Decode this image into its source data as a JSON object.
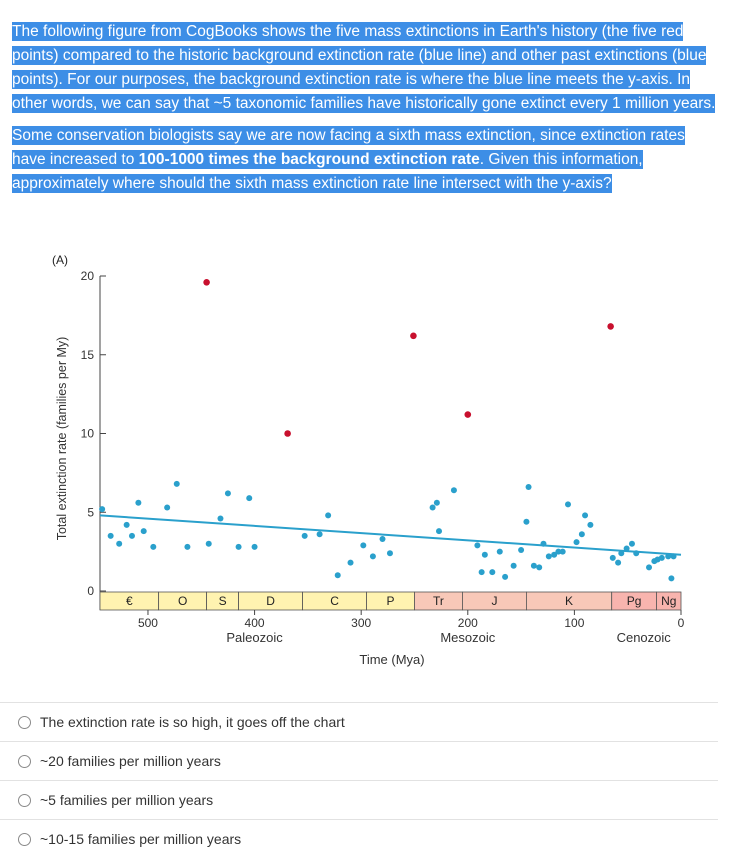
{
  "question": {
    "para1": "The following figure from CogBooks shows the five mass extinctions in Earth's history (the five red points) compared to the historic background extinction rate (blue line) and other past extinctions (blue points). For our purposes, the background extinction rate is where the blue line meets the y-axis. In other words, we can say that ~5 taxonomic families have historically gone extinct every 1 million years.",
    "para2_pre": "Some conservation biologists say we are now facing a sixth mass extinction, since extinction rates have increased to ",
    "para2_bold": "100-1000 times the background extinction rate",
    "para2_post": ". Given this information, approximately where should the sixth mass extinction rate line intersect with the y-axis?"
  },
  "options": [
    {
      "label": "The extinction rate is so high, it goes off the chart"
    },
    {
      "label": "~20 families per million years"
    },
    {
      "label": "~5 families per million years"
    },
    {
      "label": "~10-15 families per million years"
    }
  ],
  "chart_data": {
    "type": "scatter",
    "panel_label": "(A)",
    "xlabel": "Time (Mya)",
    "ylabel": "Total extinction rate (families per My)",
    "xlim": [
      545,
      0
    ],
    "ylim": [
      0,
      20
    ],
    "x_ticks": [
      500,
      400,
      300,
      200,
      100,
      0
    ],
    "y_ticks": [
      0,
      5,
      10,
      15,
      20
    ],
    "eras": [
      {
        "label": "Paleozoic",
        "x": 400
      },
      {
        "label": "Mesozoic",
        "x": 200
      },
      {
        "label": "Cenozoic",
        "x": 35
      }
    ],
    "periods": [
      {
        "label": "€",
        "start": 545,
        "end": 490,
        "color": "#fff3b0"
      },
      {
        "label": "O",
        "start": 490,
        "end": 445,
        "color": "#fff3b0"
      },
      {
        "label": "S",
        "start": 445,
        "end": 415,
        "color": "#fff3b0"
      },
      {
        "label": "D",
        "start": 415,
        "end": 355,
        "color": "#fff3b0"
      },
      {
        "label": "C",
        "start": 355,
        "end": 295,
        "color": "#fff3b0"
      },
      {
        "label": "P",
        "start": 295,
        "end": 250,
        "color": "#fff3b0"
      },
      {
        "label": "Tr",
        "start": 250,
        "end": 205,
        "color": "#f8c8b8"
      },
      {
        "label": "J",
        "start": 205,
        "end": 145,
        "color": "#f8c8b8"
      },
      {
        "label": "K",
        "start": 145,
        "end": 65,
        "color": "#f8c8b8"
      },
      {
        "label": "Pg",
        "start": 65,
        "end": 23,
        "color": "#f8b4ae"
      },
      {
        "label": "Ng",
        "start": 23,
        "end": 0,
        "color": "#f8b4ae"
      }
    ],
    "background_line": {
      "from": [
        545,
        4.8
      ],
      "to": [
        0,
        2.3
      ],
      "color": "#2aa0cc"
    },
    "mass_extinctions": {
      "color": "#c8102e",
      "points": [
        {
          "x": 445,
          "y": 19.6
        },
        {
          "x": 369,
          "y": 10.0
        },
        {
          "x": 251,
          "y": 16.2
        },
        {
          "x": 200,
          "y": 11.2
        },
        {
          "x": 66,
          "y": 16.8
        }
      ]
    },
    "background_extinctions": {
      "color": "#2aa0cc",
      "points": [
        {
          "x": 543,
          "y": 5.2
        },
        {
          "x": 535,
          "y": 3.5
        },
        {
          "x": 527,
          "y": 3.0
        },
        {
          "x": 520,
          "y": 4.2
        },
        {
          "x": 515,
          "y": 3.5
        },
        {
          "x": 509,
          "y": 5.6
        },
        {
          "x": 504,
          "y": 3.8
        },
        {
          "x": 495,
          "y": 2.8
        },
        {
          "x": 482,
          "y": 5.3
        },
        {
          "x": 473,
          "y": 6.8
        },
        {
          "x": 463,
          "y": 2.8
        },
        {
          "x": 443,
          "y": 3.0
        },
        {
          "x": 432,
          "y": 4.6
        },
        {
          "x": 425,
          "y": 6.2
        },
        {
          "x": 415,
          "y": 2.8
        },
        {
          "x": 405,
          "y": 5.9
        },
        {
          "x": 400,
          "y": 2.8
        },
        {
          "x": 353,
          "y": 3.5
        },
        {
          "x": 339,
          "y": 3.6
        },
        {
          "x": 331,
          "y": 4.8
        },
        {
          "x": 322,
          "y": 1.0
        },
        {
          "x": 310,
          "y": 1.8
        },
        {
          "x": 298,
          "y": 2.9
        },
        {
          "x": 289,
          "y": 2.2
        },
        {
          "x": 280,
          "y": 3.3
        },
        {
          "x": 273,
          "y": 2.4
        },
        {
          "x": 233,
          "y": 5.3
        },
        {
          "x": 229,
          "y": 5.6
        },
        {
          "x": 227,
          "y": 3.8
        },
        {
          "x": 213,
          "y": 6.4
        },
        {
          "x": 191,
          "y": 2.9
        },
        {
          "x": 187,
          "y": 1.2
        },
        {
          "x": 184,
          "y": 2.3
        },
        {
          "x": 177,
          "y": 1.2
        },
        {
          "x": 170,
          "y": 2.5
        },
        {
          "x": 165,
          "y": 0.9
        },
        {
          "x": 157,
          "y": 1.6
        },
        {
          "x": 150,
          "y": 2.6
        },
        {
          "x": 145,
          "y": 4.4
        },
        {
          "x": 143,
          "y": 6.6
        },
        {
          "x": 138,
          "y": 1.6
        },
        {
          "x": 133,
          "y": 1.5
        },
        {
          "x": 129,
          "y": 3.0
        },
        {
          "x": 124,
          "y": 2.2
        },
        {
          "x": 119,
          "y": 2.3
        },
        {
          "x": 115,
          "y": 2.5
        },
        {
          "x": 111,
          "y": 2.5
        },
        {
          "x": 106,
          "y": 5.5
        },
        {
          "x": 98,
          "y": 3.1
        },
        {
          "x": 93,
          "y": 3.6
        },
        {
          "x": 90,
          "y": 4.8
        },
        {
          "x": 85,
          "y": 4.2
        },
        {
          "x": 64,
          "y": 2.1
        },
        {
          "x": 59,
          "y": 1.8
        },
        {
          "x": 56,
          "y": 2.4
        },
        {
          "x": 51,
          "y": 2.7
        },
        {
          "x": 46,
          "y": 3.0
        },
        {
          "x": 42,
          "y": 2.4
        },
        {
          "x": 30,
          "y": 1.5
        },
        {
          "x": 25,
          "y": 1.9
        },
        {
          "x": 22,
          "y": 2.0
        },
        {
          "x": 18,
          "y": 2.1
        },
        {
          "x": 12,
          "y": 2.2
        },
        {
          "x": 9,
          "y": 0.8
        },
        {
          "x": 7,
          "y": 2.2
        }
      ]
    }
  }
}
